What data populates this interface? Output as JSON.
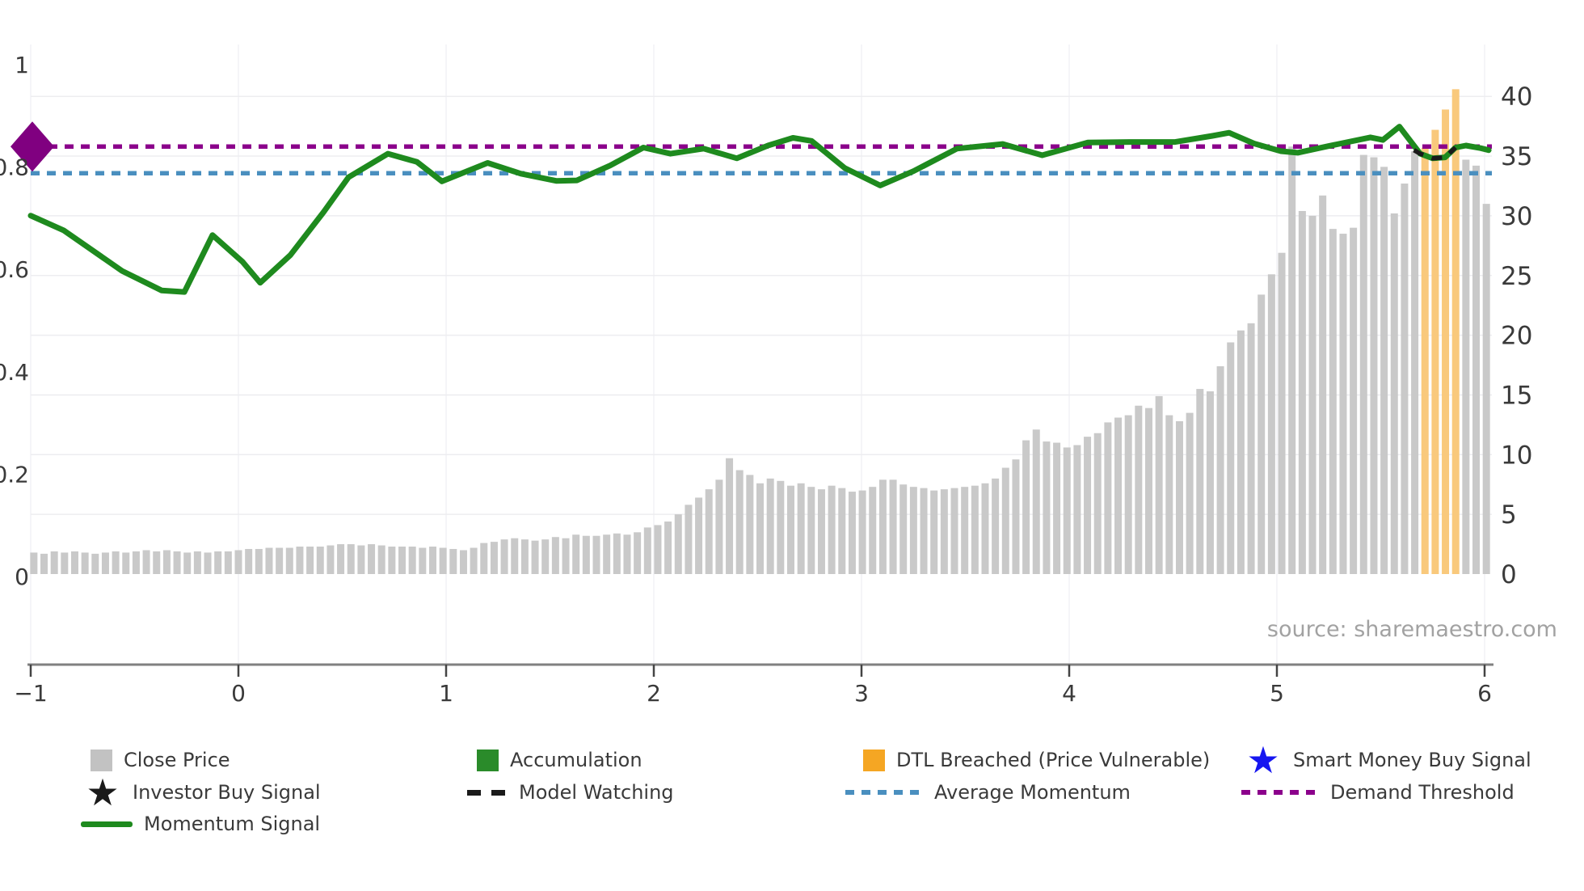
{
  "source_note": "source: sharemaestro.com",
  "colors": {
    "close_price_bar": "#c9c9c9",
    "close_price_swatch": "#c2c2c2",
    "accumulation_green": "#2a8b2a",
    "momentum_line": "#1e8a1e",
    "dtl_bar": "#f9c97c",
    "dtl_swatch": "#f5a623",
    "average_momentum_blue": "#4a8fbf",
    "demand_threshold_purple": "#8b008b",
    "smart_money_star_blue": "#1616f0",
    "model_watching_black": "#1a1a1a",
    "axis_text": "#3a3a3a",
    "grid_line": "#ededf0",
    "vertical_grid": "#f2f2f5",
    "axis_spine": "#808080",
    "source_gray": "#a2a2a2"
  },
  "legend": {
    "close_price": "Close Price",
    "investor_buy_signal": "Investor Buy Signal",
    "momentum_signal": "Momentum Signal",
    "accumulation": "Accumulation",
    "model_watching": "Model Watching",
    "dtl_breached": "DTL Breached (Price Vulnerable)",
    "average_momentum": "Average Momentum",
    "smart_money_buy_signal": "Smart Money Buy Signal",
    "demand_threshold": "Demand Threshold"
  },
  "chart_data": {
    "type": "bar+line",
    "title": "",
    "x_axis": {
      "ticks": [
        "−1",
        "0",
        "1",
        "2",
        "3",
        "4",
        "5",
        "6"
      ],
      "tick_values": [
        -1,
        0,
        1,
        2,
        3,
        4,
        5,
        6
      ],
      "range": [
        -1,
        6
      ]
    },
    "left_axis": {
      "ticks": [
        "0",
        "0.2",
        "0.4",
        "0.6",
        "0.8",
        "1"
      ],
      "tick_values": [
        0,
        0.2,
        0.4,
        0.6,
        0.8,
        1
      ],
      "range": [
        0,
        1
      ],
      "series": "Momentum Signal"
    },
    "right_axis": {
      "ticks": [
        "0",
        "5",
        "10",
        "15",
        "20",
        "25",
        "30",
        "35",
        "40"
      ],
      "tick_values": [
        0,
        5,
        10,
        15,
        20,
        25,
        30,
        35,
        40
      ],
      "range": [
        0,
        40
      ],
      "series": "Close Price"
    },
    "grid": true,
    "legend_position": "bottom",
    "average_momentum": 0.788,
    "demand_threshold": 0.84,
    "demand_threshold_marker": {
      "shape": "diamond",
      "x": -1.0,
      "y": 0.84
    },
    "close_price": {
      "axis": "right",
      "x_start": -0.985,
      "x_step": 0.04925,
      "values": [
        1.8,
        1.7,
        1.9,
        1.8,
        1.9,
        1.8,
        1.7,
        1.8,
        1.9,
        1.8,
        1.9,
        2.0,
        1.9,
        2.0,
        1.9,
        1.8,
        1.9,
        1.8,
        1.9,
        1.9,
        2.0,
        2.1,
        2.1,
        2.2,
        2.2,
        2.2,
        2.3,
        2.3,
        2.3,
        2.4,
        2.5,
        2.5,
        2.4,
        2.5,
        2.4,
        2.3,
        2.3,
        2.3,
        2.2,
        2.3,
        2.2,
        2.1,
        2.0,
        2.2,
        2.6,
        2.7,
        2.9,
        3.0,
        2.9,
        2.8,
        2.9,
        3.1,
        3.0,
        3.3,
        3.2,
        3.2,
        3.3,
        3.4,
        3.3,
        3.5,
        3.9,
        4.1,
        4.4,
        5.0,
        5.8,
        6.4,
        7.1,
        7.9,
        9.7,
        8.7,
        8.3,
        7.6,
        8.0,
        7.8,
        7.4,
        7.6,
        7.3,
        7.1,
        7.4,
        7.2,
        6.9,
        7.0,
        7.3,
        7.9,
        7.9,
        7.5,
        7.3,
        7.2,
        7.0,
        7.1,
        7.2,
        7.3,
        7.4,
        7.6,
        8.0,
        8.9,
        9.6,
        11.2,
        12.1,
        11.1,
        11.0,
        10.6,
        10.8,
        11.5,
        11.8,
        12.7,
        13.1,
        13.3,
        14.1,
        13.9,
        14.9,
        13.3,
        12.8,
        13.5,
        15.5,
        15.3,
        17.4,
        19.4,
        20.4,
        21.0,
        23.4,
        25.1,
        26.9,
        35.8,
        30.4,
        30.0,
        31.7,
        28.9,
        28.5,
        29.0,
        35.1,
        34.9,
        34.1,
        30.2,
        32.7,
        35.4,
        35.7,
        37.2,
        38.9,
        40.6,
        34.7,
        34.2,
        31.0
      ],
      "dtl_breached_indices": [
        136,
        137,
        138,
        139
      ]
    },
    "momentum_signal": {
      "axis": "left",
      "points": [
        [
          -1.0,
          0.705
        ],
        [
          -0.84,
          0.676
        ],
        [
          -0.56,
          0.597
        ],
        [
          -0.37,
          0.559
        ],
        [
          -0.26,
          0.556
        ],
        [
          -0.125,
          0.667
        ],
        [
          0.02,
          0.615
        ],
        [
          0.105,
          0.574
        ],
        [
          0.25,
          0.628
        ],
        [
          0.41,
          0.712
        ],
        [
          0.53,
          0.78
        ],
        [
          0.72,
          0.826
        ],
        [
          0.86,
          0.81
        ],
        [
          0.98,
          0.772
        ],
        [
          1.09,
          0.79
        ],
        [
          1.2,
          0.808
        ],
        [
          1.36,
          0.787
        ],
        [
          1.53,
          0.773
        ],
        [
          1.63,
          0.774
        ],
        [
          1.79,
          0.803
        ],
        [
          1.95,
          0.838
        ],
        [
          2.08,
          0.826
        ],
        [
          2.24,
          0.836
        ],
        [
          2.4,
          0.817
        ],
        [
          2.55,
          0.842
        ],
        [
          2.67,
          0.857
        ],
        [
          2.76,
          0.851
        ],
        [
          2.92,
          0.798
        ],
        [
          3.09,
          0.764
        ],
        [
          3.25,
          0.792
        ],
        [
          3.46,
          0.836
        ],
        [
          3.68,
          0.845
        ],
        [
          3.87,
          0.823
        ],
        [
          4.09,
          0.848
        ],
        [
          4.3,
          0.849
        ],
        [
          4.51,
          0.849
        ],
        [
          4.69,
          0.861
        ],
        [
          4.77,
          0.867
        ],
        [
          4.89,
          0.846
        ],
        [
          5.02,
          0.831
        ],
        [
          5.1,
          0.828
        ],
        [
          5.25,
          0.841
        ],
        [
          5.45,
          0.858
        ],
        [
          5.51,
          0.853
        ],
        [
          5.59,
          0.879
        ],
        [
          5.69,
          0.826
        ],
        [
          5.75,
          0.817
        ],
        [
          5.81,
          0.819
        ],
        [
          5.86,
          0.838
        ],
        [
          5.91,
          0.842
        ],
        [
          5.98,
          0.837
        ],
        [
          6.02,
          0.833
        ]
      ]
    },
    "model_watching": {
      "axis": "left",
      "points": [
        [
          5.66,
          0.833
        ],
        [
          5.69,
          0.826
        ],
        [
          5.75,
          0.817
        ],
        [
          5.81,
          0.819
        ],
        [
          5.86,
          0.838
        ]
      ]
    }
  }
}
